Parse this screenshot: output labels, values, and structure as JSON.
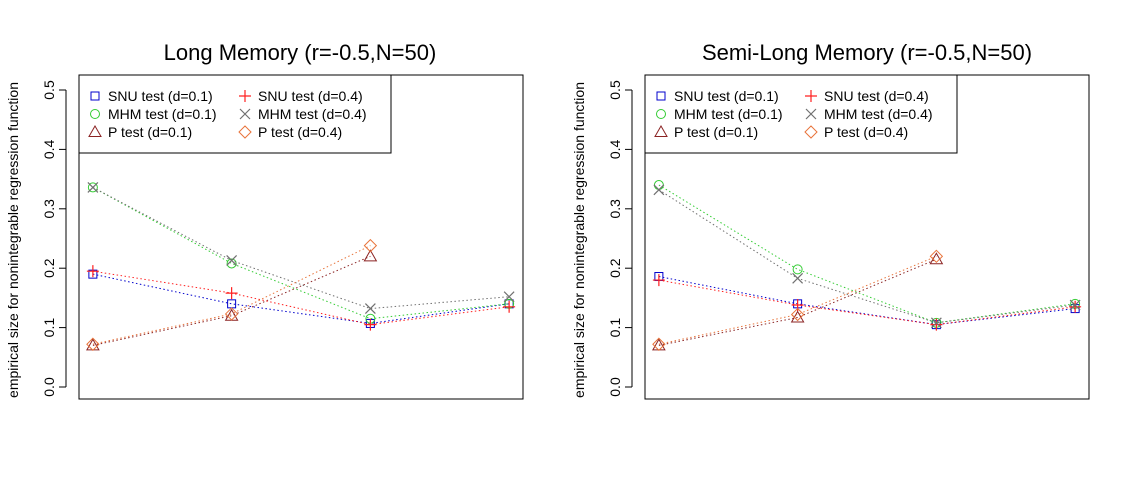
{
  "chart_data": [
    {
      "type": "line",
      "title": "Long Memory (r=-0.5,N=50)",
      "xlabel": "",
      "ylabel": "empirical size for nonintegrable regression function",
      "x": [
        1,
        2,
        3,
        4
      ],
      "xlim": [
        0.9,
        4.1
      ],
      "ylim": [
        0,
        0.5
      ],
      "yticks": [
        "0.0",
        "0.1",
        "0.2",
        "0.3",
        "0.4",
        "0.5"
      ],
      "yticks_values": [
        0,
        0.1,
        0.2,
        0.3,
        0.4,
        0.5
      ],
      "legend_position": "top-left",
      "series": [
        {
          "name": "SNU test (d=0.1)",
          "color": "#0000CC",
          "marker": "square",
          "values": [
            0.19,
            0.14,
            0.107,
            0.14
          ]
        },
        {
          "name": "MHM test (d=0.1)",
          "color": "#33CC33",
          "marker": "circle",
          "values": [
            0.336,
            0.208,
            0.115,
            0.14
          ]
        },
        {
          "name": "P test (d=0.1)",
          "color": "#8B2323",
          "marker": "triangle",
          "values": [
            0.07,
            0.12,
            0.22,
            null
          ]
        },
        {
          "name": "SNU test (d=0.4)",
          "color": "#FF2020",
          "marker": "plus",
          "values": [
            0.195,
            0.158,
            0.105,
            0.135
          ]
        },
        {
          "name": "MHM test (d=0.4)",
          "color": "#707070",
          "marker": "cross",
          "values": [
            0.336,
            0.213,
            0.132,
            0.152
          ]
        },
        {
          "name": "P test (d=0.4)",
          "color": "#E8743B",
          "marker": "diamond",
          "values": [
            0.072,
            0.123,
            0.238,
            null
          ]
        }
      ]
    },
    {
      "type": "line",
      "title": "Semi-Long Memory (r=-0.5,N=50)",
      "xlabel": "",
      "ylabel": "empirical size for nonintegrable regression function",
      "x": [
        1,
        2,
        3,
        4
      ],
      "xlim": [
        0.9,
        4.1
      ],
      "ylim": [
        0,
        0.5
      ],
      "yticks": [
        "0.0",
        "0.1",
        "0.2",
        "0.3",
        "0.4",
        "0.5"
      ],
      "yticks_values": [
        0,
        0.1,
        0.2,
        0.3,
        0.4,
        0.5
      ],
      "legend_position": "top-left",
      "series": [
        {
          "name": "SNU test (d=0.1)",
          "color": "#0000CC",
          "marker": "square",
          "values": [
            0.186,
            0.14,
            0.105,
            0.132
          ]
        },
        {
          "name": "MHM test (d=0.1)",
          "color": "#33CC33",
          "marker": "circle",
          "values": [
            0.34,
            0.198,
            0.108,
            0.14
          ]
        },
        {
          "name": "P test (d=0.1)",
          "color": "#8B2323",
          "marker": "triangle",
          "values": [
            0.07,
            0.117,
            0.215,
            null
          ]
        },
        {
          "name": "SNU test (d=0.4)",
          "color": "#FF2020",
          "marker": "plus",
          "values": [
            0.18,
            0.138,
            0.105,
            0.135
          ]
        },
        {
          "name": "MHM test (d=0.4)",
          "color": "#707070",
          "marker": "cross",
          "values": [
            0.332,
            0.183,
            0.108,
            0.138
          ]
        },
        {
          "name": "P test (d=0.4)",
          "color": "#E8743B",
          "marker": "diamond",
          "values": [
            0.072,
            0.122,
            0.22,
            null
          ]
        }
      ]
    }
  ]
}
